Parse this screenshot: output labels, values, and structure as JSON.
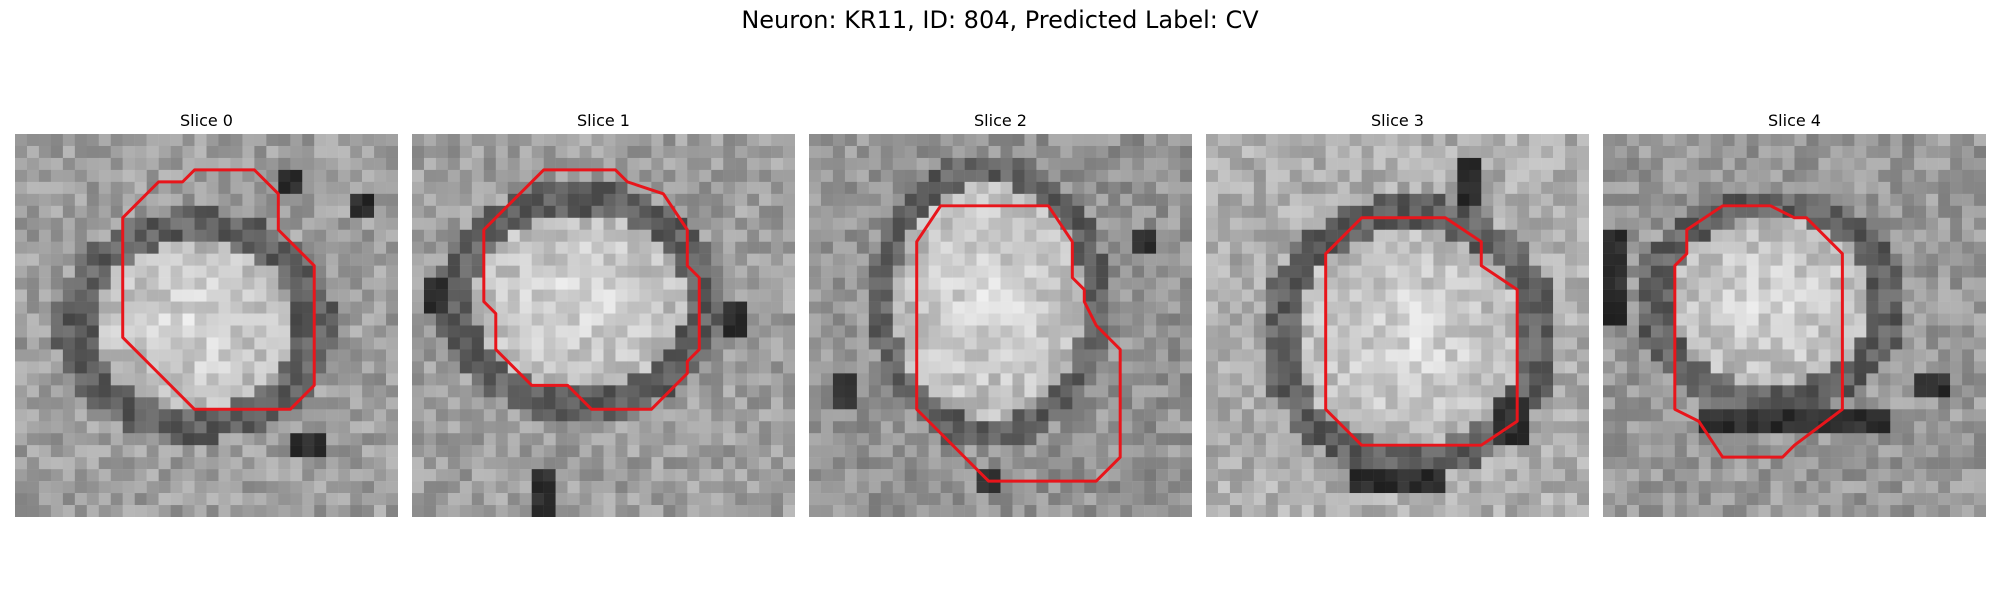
{
  "figure": {
    "title": "Neuron: KR11, ID: 804, Predicted Label: CV"
  },
  "panels": [
    {
      "title": "Slice 0"
    },
    {
      "title": "Slice 1"
    },
    {
      "title": "Slice 2"
    },
    {
      "title": "Slice 3"
    },
    {
      "title": "Slice 4"
    }
  ],
  "colors": {
    "contour": "#e8151b",
    "background": "#ffffff"
  }
}
